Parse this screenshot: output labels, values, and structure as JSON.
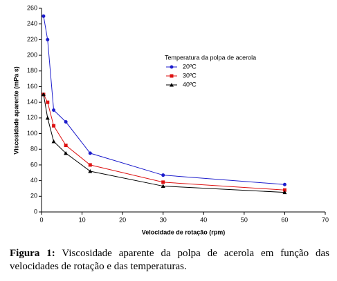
{
  "chart_data": {
    "type": "line",
    "xlabel": "Velocidade de rotação (rpm)",
    "ylabel": "Viscosidade aparente (mPa s)",
    "legend_title": "Temperatura da polpa de acerola",
    "legend": "upper right",
    "x": [
      0.5,
      1.5,
      3,
      6,
      12,
      30,
      60
    ],
    "series": [
      {
        "name": "20ºC",
        "color": "#1c1ccc",
        "marker": "circle",
        "values": [
          250,
          220,
          130,
          115,
          75,
          47,
          35
        ]
      },
      {
        "name": "30ºC",
        "color": "#dd1111",
        "marker": "square",
        "values": [
          150,
          140,
          110,
          85,
          60,
          38,
          28
        ]
      },
      {
        "name": "40ºC",
        "color": "#000000",
        "marker": "triangle",
        "values": [
          150,
          120,
          90,
          75,
          52,
          33,
          25
        ]
      }
    ],
    "xlim": [
      0,
      70
    ],
    "xticks": [
      0,
      10,
      20,
      30,
      40,
      50,
      60,
      70
    ],
    "ylim": [
      0,
      260
    ],
    "yticks": [
      0,
      20,
      40,
      60,
      80,
      100,
      120,
      140,
      160,
      180,
      200,
      220,
      240,
      260
    ]
  },
  "caption": {
    "label": "Figura 1:",
    "text": "Viscosidade aparente da polpa de acerola em função das velocidades de rotação e das temperaturas."
  }
}
